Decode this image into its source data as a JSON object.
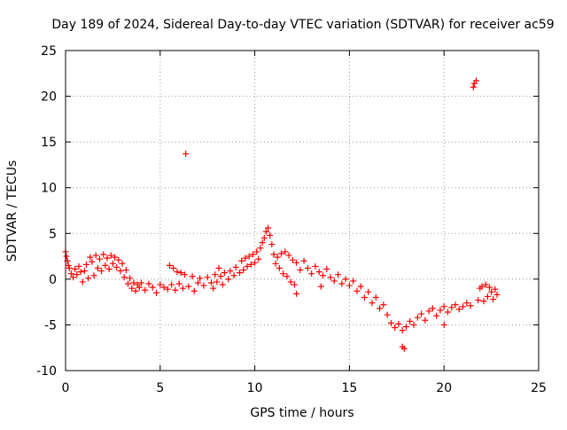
{
  "chart_data": {
    "type": "scatter",
    "title": "Day 189 of 2024, Sidereal Day-to-day VTEC variation (SDTVAR) for receiver ac59",
    "xlabel": "GPS time / hours",
    "ylabel": "SDTVAR / TECUs",
    "xlim": [
      0,
      25
    ],
    "ylim": [
      -10,
      25
    ],
    "x_ticks": [
      0,
      5,
      10,
      15,
      20,
      25
    ],
    "y_ticks": [
      -10,
      -5,
      0,
      5,
      10,
      15,
      20,
      25
    ],
    "grid": true,
    "marker": "+",
    "color": "#ff0000",
    "series": [
      {
        "name": "SDTVAR",
        "points": [
          [
            0.0,
            3.0
          ],
          [
            0.05,
            2.5
          ],
          [
            0.1,
            2.0
          ],
          [
            0.15,
            1.5
          ],
          [
            0.2,
            1.2
          ],
          [
            0.3,
            0.6
          ],
          [
            0.4,
            0.2
          ],
          [
            0.5,
            1.1
          ],
          [
            0.6,
            0.5
          ],
          [
            0.7,
            1.4
          ],
          [
            0.8,
            0.8
          ],
          [
            0.9,
            -0.3
          ],
          [
            1.0,
            0.9
          ],
          [
            1.1,
            1.6
          ],
          [
            1.2,
            0.1
          ],
          [
            1.3,
            2.4
          ],
          [
            1.4,
            1.9
          ],
          [
            1.5,
            0.4
          ],
          [
            1.6,
            2.6
          ],
          [
            1.7,
            1.2
          ],
          [
            1.8,
            2.2
          ],
          [
            1.9,
            0.9
          ],
          [
            2.0,
            2.7
          ],
          [
            2.1,
            1.5
          ],
          [
            2.2,
            2.3
          ],
          [
            2.3,
            1.1
          ],
          [
            2.4,
            2.6
          ],
          [
            2.5,
            1.7
          ],
          [
            2.6,
            2.4
          ],
          [
            2.7,
            1.3
          ],
          [
            2.8,
            2.1
          ],
          [
            2.9,
            0.9
          ],
          [
            3.0,
            1.7
          ],
          [
            3.1,
            0.2
          ],
          [
            3.2,
            1.0
          ],
          [
            3.3,
            -0.5
          ],
          [
            3.4,
            0.1
          ],
          [
            3.5,
            -1.0
          ],
          [
            3.6,
            -0.4
          ],
          [
            3.7,
            -1.3
          ],
          [
            3.8,
            -0.6
          ],
          [
            3.9,
            -0.9
          ],
          [
            4.0,
            -0.4
          ],
          [
            4.2,
            -1.2
          ],
          [
            4.4,
            -0.5
          ],
          [
            4.6,
            -0.9
          ],
          [
            4.8,
            -1.5
          ],
          [
            5.0,
            -0.6
          ],
          [
            5.2,
            -0.9
          ],
          [
            5.4,
            -1.1
          ],
          [
            5.5,
            1.5
          ],
          [
            5.6,
            -0.6
          ],
          [
            5.7,
            1.2
          ],
          [
            5.8,
            -1.2
          ],
          [
            5.9,
            0.8
          ],
          [
            6.0,
            -0.5
          ],
          [
            6.1,
            0.7
          ],
          [
            6.2,
            -1.0
          ],
          [
            6.3,
            0.5
          ],
          [
            6.35,
            13.7
          ],
          [
            6.5,
            -0.8
          ],
          [
            6.7,
            0.3
          ],
          [
            6.8,
            -1.3
          ],
          [
            7.0,
            -0.4
          ],
          [
            7.1,
            0.1
          ],
          [
            7.3,
            -0.7
          ],
          [
            7.5,
            0.2
          ],
          [
            7.7,
            -0.4
          ],
          [
            7.8,
            -1.0
          ],
          [
            7.9,
            0.5
          ],
          [
            8.0,
            -0.3
          ],
          [
            8.1,
            1.2
          ],
          [
            8.2,
            0.3
          ],
          [
            8.3,
            -0.6
          ],
          [
            8.4,
            0.7
          ],
          [
            8.6,
            0.0
          ],
          [
            8.7,
            0.9
          ],
          [
            8.9,
            0.4
          ],
          [
            9.0,
            1.3
          ],
          [
            9.2,
            0.7
          ],
          [
            9.3,
            2.0
          ],
          [
            9.4,
            1.0
          ],
          [
            9.5,
            2.3
          ],
          [
            9.6,
            1.4
          ],
          [
            9.7,
            2.5
          ],
          [
            9.8,
            1.6
          ],
          [
            9.9,
            2.7
          ],
          [
            10.0,
            1.8
          ],
          [
            10.1,
            3.0
          ],
          [
            10.2,
            2.2
          ],
          [
            10.3,
            3.4
          ],
          [
            10.4,
            4.0
          ],
          [
            10.5,
            4.5
          ],
          [
            10.6,
            5.2
          ],
          [
            10.7,
            5.6
          ],
          [
            10.8,
            4.8
          ],
          [
            10.9,
            3.8
          ],
          [
            11.0,
            2.7
          ],
          [
            11.1,
            1.7
          ],
          [
            11.2,
            2.4
          ],
          [
            11.3,
            1.2
          ],
          [
            11.4,
            2.8
          ],
          [
            11.5,
            0.6
          ],
          [
            11.6,
            3.0
          ],
          [
            11.7,
            0.3
          ],
          [
            11.8,
            2.6
          ],
          [
            11.9,
            -0.3
          ],
          [
            12.0,
            2.1
          ],
          [
            12.1,
            -0.6
          ],
          [
            12.2,
            1.8
          ],
          [
            12.2,
            -1.6
          ],
          [
            12.4,
            1.0
          ],
          [
            12.6,
            2.0
          ],
          [
            12.8,
            1.2
          ],
          [
            13.0,
            0.6
          ],
          [
            13.2,
            1.4
          ],
          [
            13.4,
            0.8
          ],
          [
            13.5,
            -0.8
          ],
          [
            13.6,
            0.4
          ],
          [
            13.8,
            1.1
          ],
          [
            14.0,
            0.2
          ],
          [
            14.2,
            -0.2
          ],
          [
            14.4,
            0.5
          ],
          [
            14.6,
            -0.5
          ],
          [
            14.8,
            0.0
          ],
          [
            15.0,
            -0.7
          ],
          [
            15.2,
            -0.2
          ],
          [
            15.4,
            -1.3
          ],
          [
            15.6,
            -0.8
          ],
          [
            15.8,
            -2.0
          ],
          [
            16.0,
            -1.4
          ],
          [
            16.2,
            -2.6
          ],
          [
            16.4,
            -2.0
          ],
          [
            16.6,
            -3.2
          ],
          [
            16.8,
            -2.8
          ],
          [
            17.0,
            -3.9
          ],
          [
            17.2,
            -4.8
          ],
          [
            17.4,
            -5.3
          ],
          [
            17.6,
            -4.9
          ],
          [
            17.8,
            -5.6
          ],
          [
            17.8,
            -7.4
          ],
          [
            17.9,
            -7.6
          ],
          [
            18.0,
            -5.2
          ],
          [
            18.2,
            -4.6
          ],
          [
            18.4,
            -5.0
          ],
          [
            18.6,
            -4.2
          ],
          [
            18.8,
            -3.8
          ],
          [
            19.0,
            -4.5
          ],
          [
            19.2,
            -3.5
          ],
          [
            19.4,
            -3.2
          ],
          [
            19.6,
            -4.0
          ],
          [
            19.8,
            -3.4
          ],
          [
            20.0,
            -3.0
          ],
          [
            20.0,
            -5.0
          ],
          [
            20.2,
            -3.6
          ],
          [
            20.4,
            -3.1
          ],
          [
            20.6,
            -2.8
          ],
          [
            20.8,
            -3.3
          ],
          [
            21.0,
            -3.0
          ],
          [
            21.2,
            -2.6
          ],
          [
            21.4,
            -2.9
          ],
          [
            21.55,
            21.0
          ],
          [
            21.6,
            21.4
          ],
          [
            21.7,
            21.7
          ],
          [
            21.8,
            -2.3
          ],
          [
            21.9,
            -1.0
          ],
          [
            22.0,
            -0.8
          ],
          [
            22.1,
            -2.4
          ],
          [
            22.2,
            -0.6
          ],
          [
            22.3,
            -1.9
          ],
          [
            22.4,
            -0.9
          ],
          [
            22.5,
            -1.4
          ],
          [
            22.6,
            -2.2
          ],
          [
            22.7,
            -1.1
          ],
          [
            22.8,
            -1.7
          ]
        ]
      }
    ]
  }
}
